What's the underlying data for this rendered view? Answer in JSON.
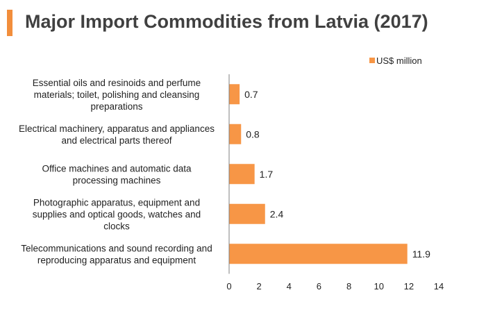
{
  "title": "Major Import Commodities from Latvia (2017)",
  "colors": {
    "accent": "#F28E3C",
    "bar": "#F79646",
    "axis": "#7f7f7f",
    "title_text": "#404040"
  },
  "chart_data": {
    "type": "bar",
    "orientation": "horizontal",
    "title": "Major Import Commodities from Latvia (2017)",
    "categories": [
      "Essential oils and resinoids and perfume materials; toilet, polishing and cleansing preparations",
      "Electrical machinery, apparatus and appliances and electrical parts thereof",
      "Office machines and automatic data processing machines",
      "Photographic apparatus, equipment and supplies and optical goods, watches and clocks",
      "Telecommunications and sound recording and reproducing apparatus and equipment"
    ],
    "category_lines": [
      [
        "Essential oils and resinoids and perfume",
        "materials; toilet, polishing and cleansing",
        "preparations"
      ],
      [
        "Electrical machinery, apparatus and appliances",
        "and electrical parts thereof"
      ],
      [
        "Office machines and automatic data",
        "processing machines"
      ],
      [
        "Photographic apparatus, equipment and",
        "supplies and optical goods, watches and",
        "clocks"
      ],
      [
        "Telecommunications and sound recording and",
        "reproducing apparatus and equipment"
      ]
    ],
    "series": [
      {
        "name": "US$ million",
        "values": [
          0.7,
          0.8,
          1.7,
          2.4,
          11.9
        ]
      }
    ],
    "data_labels": [
      "0.7",
      "0.8",
      "1.7",
      "2.4",
      "11.9"
    ],
    "xlim": [
      0,
      14
    ],
    "xticks": [
      "0",
      "2",
      "4",
      "6",
      "8",
      "10",
      "12",
      "14"
    ],
    "grid": false,
    "legend_position": "top-right"
  }
}
